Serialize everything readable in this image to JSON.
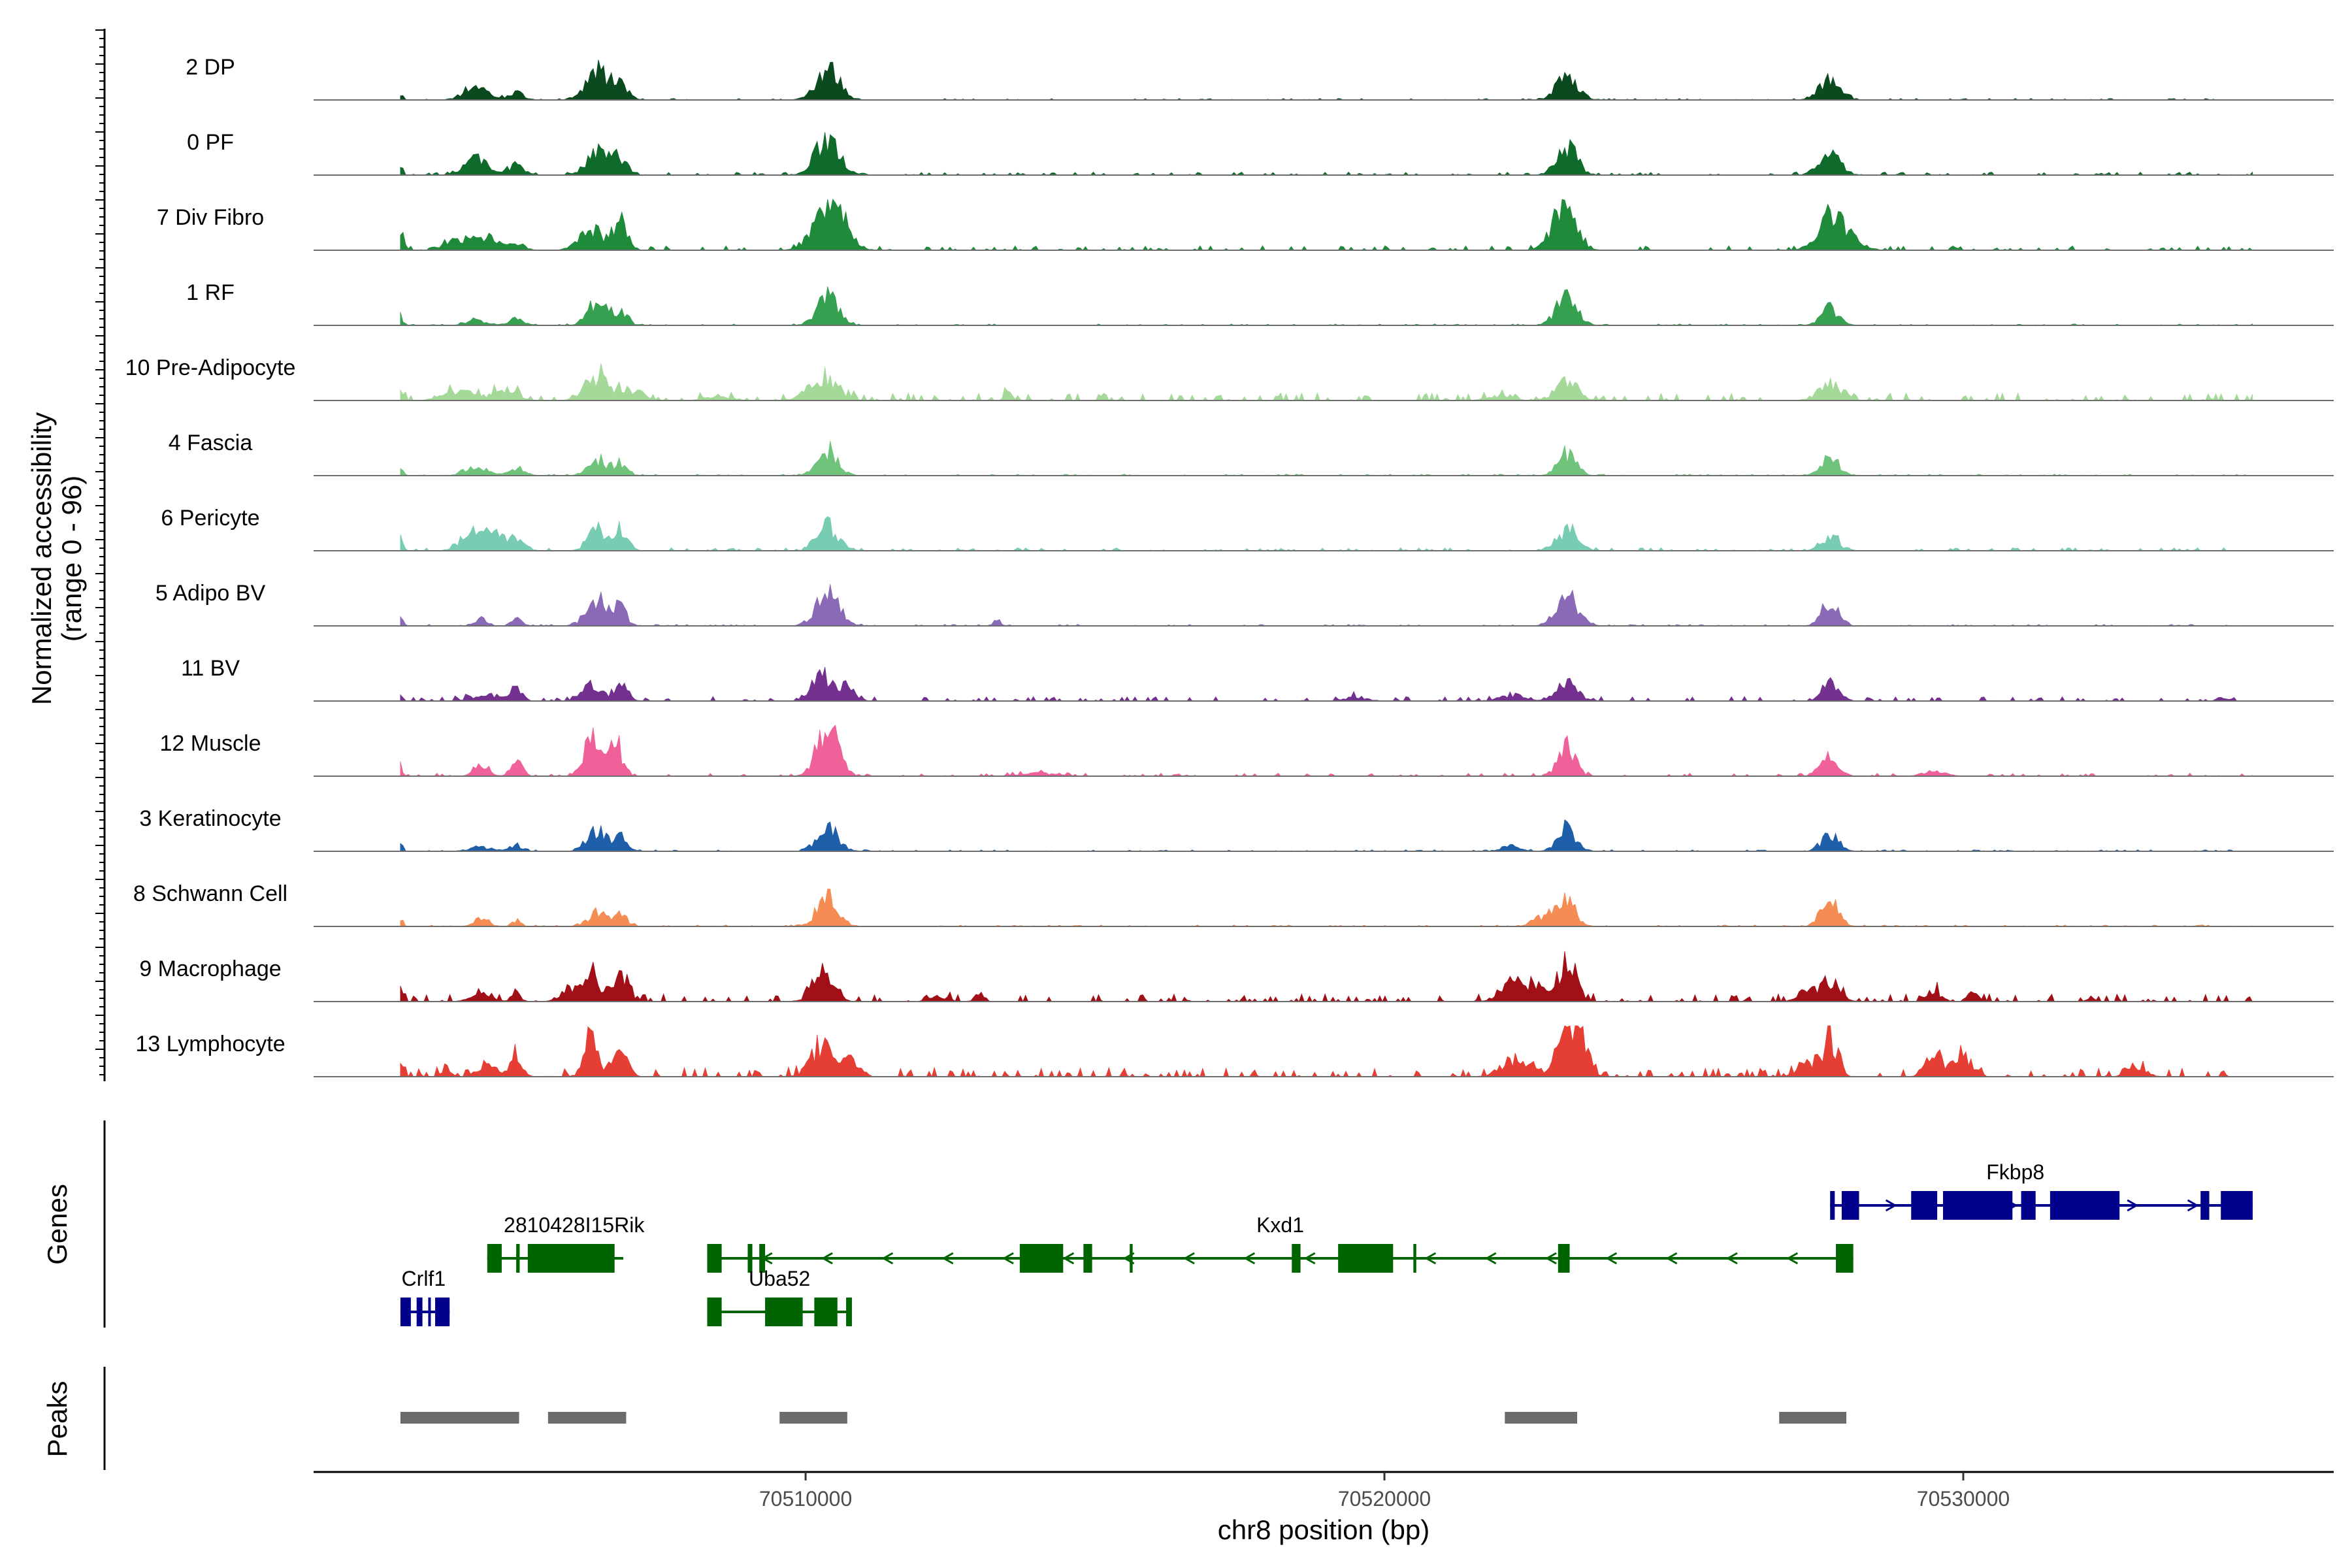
{
  "chart_data": {
    "type": "area",
    "title": "",
    "ylabel_line1": "Normalized accessibility",
    "ylabel_line2": "(range 0 - 96)",
    "xlabel": "chr8 position (bp)",
    "xlim": [
      70501500,
      70536400
    ],
    "x_ticks": [
      70510000,
      70520000,
      70530000
    ],
    "x_tick_labels": [
      "70510000",
      "70520000",
      "70530000"
    ],
    "y_range": [
      0,
      96
    ],
    "genes_track_label": "Genes",
    "peaks_track_label": "Peaks",
    "peak_centers": [
      70504000,
      70506550,
      70510380,
      70523150,
      70527720
    ],
    "series": [
      {
        "name": "2 DP",
        "color": "#0b4a1f",
        "peaks": [
          [
            70503000,
            0.15,
            40
          ],
          [
            70504300,
            0.28,
            200
          ],
          [
            70505000,
            0.14,
            140
          ],
          [
            70506400,
            0.55,
            180
          ],
          [
            70506800,
            0.38,
            120
          ],
          [
            70510380,
            0.6,
            200
          ],
          [
            70523150,
            0.45,
            180
          ],
          [
            70527700,
            0.4,
            180
          ]
        ],
        "noise": 0.01
      },
      {
        "name": "0 PF",
        "color": "#0e6b2b",
        "peaks": [
          [
            70503000,
            0.2,
            40
          ],
          [
            70504300,
            0.3,
            200
          ],
          [
            70505000,
            0.18,
            140
          ],
          [
            70506400,
            0.45,
            180
          ],
          [
            70506800,
            0.35,
            120
          ],
          [
            70510380,
            0.72,
            200
          ],
          [
            70523150,
            0.55,
            180
          ],
          [
            70527700,
            0.45,
            180
          ]
        ],
        "noise": 0.02
      },
      {
        "name": "7 Div Fibro",
        "color": "#1f8a3a",
        "peaks": [
          [
            70503000,
            0.4,
            60
          ],
          [
            70504000,
            0.2,
            200
          ],
          [
            70504500,
            0.25,
            160
          ],
          [
            70505000,
            0.15,
            140
          ],
          [
            70506300,
            0.4,
            200
          ],
          [
            70506800,
            0.55,
            120
          ],
          [
            70510300,
            0.65,
            220
          ],
          [
            70510600,
            0.45,
            200
          ],
          [
            70523100,
            0.85,
            200
          ],
          [
            70527700,
            0.62,
            220
          ],
          [
            70528100,
            0.15,
            200
          ]
        ],
        "noise": 0.03
      },
      {
        "name": "1 RF",
        "color": "#35a04f",
        "peaks": [
          [
            70503000,
            0.2,
            40
          ],
          [
            70504300,
            0.12,
            160
          ],
          [
            70505000,
            0.12,
            140
          ],
          [
            70506400,
            0.45,
            160
          ],
          [
            70506800,
            0.28,
            120
          ],
          [
            70510380,
            0.55,
            180
          ],
          [
            70523150,
            0.55,
            180
          ],
          [
            70527700,
            0.35,
            150
          ]
        ],
        "noise": 0.01
      },
      {
        "name": "10 Pre-Adipocyte",
        "color": "#a4d99a",
        "peaks": [
          [
            70503000,
            0.25,
            40
          ],
          [
            70504000,
            0.2,
            250
          ],
          [
            70504800,
            0.22,
            200
          ],
          [
            70506400,
            0.5,
            200
          ],
          [
            70507000,
            0.2,
            200
          ],
          [
            70508500,
            0.1,
            200
          ],
          [
            70510300,
            0.45,
            250
          ],
          [
            70513500,
            0.15,
            60
          ],
          [
            70522000,
            0.1,
            200
          ],
          [
            70523150,
            0.35,
            200
          ],
          [
            70527700,
            0.35,
            200
          ]
        ],
        "noise": 0.05
      },
      {
        "name": "4 Fascia",
        "color": "#6fc37a",
        "peaks": [
          [
            70503000,
            0.15,
            40
          ],
          [
            70504300,
            0.18,
            180
          ],
          [
            70505000,
            0.15,
            140
          ],
          [
            70506400,
            0.3,
            160
          ],
          [
            70506800,
            0.25,
            120
          ],
          [
            70510380,
            0.48,
            180
          ],
          [
            70523150,
            0.42,
            160
          ],
          [
            70527700,
            0.35,
            150
          ]
        ],
        "noise": 0.01
      },
      {
        "name": "6 Pericyte",
        "color": "#77ccb3",
        "peaks": [
          [
            70503000,
            0.25,
            40
          ],
          [
            70504200,
            0.32,
            180
          ],
          [
            70504600,
            0.3,
            180
          ],
          [
            70505000,
            0.22,
            140
          ],
          [
            70506400,
            0.38,
            160
          ],
          [
            70506800,
            0.4,
            120
          ],
          [
            70510380,
            0.5,
            180
          ],
          [
            70523150,
            0.4,
            180
          ],
          [
            70527700,
            0.3,
            150
          ]
        ],
        "noise": 0.02
      },
      {
        "name": "5 Adipo BV",
        "color": "#8a6ab7",
        "peaks": [
          [
            70503000,
            0.2,
            40
          ],
          [
            70504400,
            0.15,
            100
          ],
          [
            70505000,
            0.2,
            80
          ],
          [
            70506400,
            0.55,
            180
          ],
          [
            70506800,
            0.3,
            120
          ],
          [
            70510380,
            0.6,
            200
          ],
          [
            70513300,
            0.12,
            60
          ],
          [
            70523150,
            0.6,
            180
          ],
          [
            70527700,
            0.45,
            150
          ]
        ],
        "noise": 0.01
      },
      {
        "name": "11 BV",
        "color": "#74308f",
        "peaks": [
          [
            70503000,
            0.15,
            40
          ],
          [
            70504500,
            0.12,
            250
          ],
          [
            70505000,
            0.22,
            100
          ],
          [
            70506300,
            0.35,
            160
          ],
          [
            70506800,
            0.3,
            120
          ],
          [
            70510300,
            0.5,
            180
          ],
          [
            70510700,
            0.25,
            150
          ],
          [
            70519500,
            0.08,
            200
          ],
          [
            70522200,
            0.12,
            200
          ],
          [
            70523150,
            0.35,
            180
          ],
          [
            70527700,
            0.32,
            150
          ],
          [
            70534500,
            0.08,
            100
          ]
        ],
        "noise": 0.03
      },
      {
        "name": "12 Muscle",
        "color": "#f0619a",
        "peaks": [
          [
            70503000,
            0.2,
            40
          ],
          [
            70504400,
            0.25,
            120
          ],
          [
            70505000,
            0.25,
            100
          ],
          [
            70506300,
            0.75,
            120
          ],
          [
            70506700,
            0.7,
            120
          ],
          [
            70510380,
            0.95,
            180
          ],
          [
            70514000,
            0.06,
            300
          ],
          [
            70523150,
            0.55,
            150
          ],
          [
            70527700,
            0.35,
            150
          ],
          [
            70529500,
            0.08,
            200
          ]
        ],
        "noise": 0.02
      },
      {
        "name": "3 Keratinocyte",
        "color": "#1f5ea8",
        "peaks": [
          [
            70503000,
            0.15,
            40
          ],
          [
            70504400,
            0.08,
            200
          ],
          [
            70505000,
            0.1,
            120
          ],
          [
            70506400,
            0.4,
            180
          ],
          [
            70506800,
            0.25,
            120
          ],
          [
            70510380,
            0.48,
            180
          ],
          [
            70522200,
            0.1,
            150
          ],
          [
            70523150,
            0.45,
            160
          ],
          [
            70527700,
            0.3,
            150
          ]
        ],
        "noise": 0.01
      },
      {
        "name": "8 Schwann Cell",
        "color": "#f58c54",
        "peaks": [
          [
            70503000,
            0.15,
            40
          ],
          [
            70504400,
            0.18,
            120
          ],
          [
            70505000,
            0.12,
            80
          ],
          [
            70506400,
            0.25,
            160
          ],
          [
            70506800,
            0.22,
            120
          ],
          [
            70510380,
            0.55,
            180
          ],
          [
            70522800,
            0.2,
            200
          ],
          [
            70523150,
            0.45,
            160
          ],
          [
            70527700,
            0.5,
            150
          ]
        ],
        "noise": 0.01
      },
      {
        "name": "9 Macrophage",
        "color": "#a11017",
        "peaks": [
          [
            70503000,
            0.25,
            40
          ],
          [
            70504400,
            0.12,
            200
          ],
          [
            70505000,
            0.15,
            80
          ],
          [
            70506000,
            0.25,
            200
          ],
          [
            70506300,
            0.55,
            120
          ],
          [
            70506800,
            0.45,
            150
          ],
          [
            70510300,
            0.55,
            180
          ],
          [
            70512300,
            0.1,
            150
          ],
          [
            70513000,
            0.15,
            80
          ],
          [
            70522200,
            0.35,
            200
          ],
          [
            70522600,
            0.3,
            150
          ],
          [
            70523150,
            0.75,
            160
          ],
          [
            70527700,
            0.4,
            160
          ],
          [
            70527300,
            0.2,
            150
          ],
          [
            70529500,
            0.2,
            120
          ],
          [
            70530200,
            0.15,
            100
          ],
          [
            70532200,
            0.08,
            60
          ]
        ],
        "noise": 0.05
      },
      {
        "name": "13 Lymphocyte",
        "color": "#e53e35",
        "peaks": [
          [
            70503000,
            0.3,
            40
          ],
          [
            70503800,
            0.18,
            80
          ],
          [
            70504500,
            0.25,
            150
          ],
          [
            70505000,
            0.4,
            100
          ],
          [
            70506300,
            0.85,
            120
          ],
          [
            70506800,
            0.5,
            120
          ],
          [
            70510300,
            0.6,
            200
          ],
          [
            70510800,
            0.25,
            150
          ],
          [
            70522300,
            0.35,
            250
          ],
          [
            70523150,
            0.9,
            150
          ],
          [
            70523400,
            0.5,
            150
          ],
          [
            70527700,
            0.8,
            120
          ],
          [
            70527300,
            0.3,
            150
          ],
          [
            70529500,
            0.35,
            150
          ],
          [
            70530000,
            0.45,
            150
          ],
          [
            70533000,
            0.2,
            150
          ]
        ],
        "noise": 0.06
      }
    ],
    "genes": [
      {
        "name": "2810428I15Rik",
        "strand": "-",
        "color": "#006400",
        "row": 1,
        "start": 70504500,
        "end": 70506850,
        "exons": [
          [
            70504500,
            70504750
          ],
          [
            70505000,
            70505060
          ],
          [
            70505200,
            70506700
          ]
        ],
        "label_x": 70506000
      },
      {
        "name": "Crlf1",
        "strand": "+",
        "color": "#00008b",
        "row": 2,
        "start": 70503000,
        "end": 70503850,
        "exons": [
          [
            70503000,
            70503180
          ],
          [
            70503280,
            70503380
          ],
          [
            70503480,
            70503520
          ],
          [
            70503600,
            70503850
          ]
        ],
        "label_x": 70503400
      },
      {
        "name": "Kxd1",
        "strand": "-",
        "color": "#006400",
        "row": 1,
        "start": 70508300,
        "end": 70528100,
        "exons": [
          [
            70508300,
            70508550
          ],
          [
            70509000,
            70509080
          ],
          [
            70509200,
            70509300
          ],
          [
            70513700,
            70514450
          ],
          [
            70514800,
            70514950
          ],
          [
            70515600,
            70515650
          ],
          [
            70518400,
            70518550
          ],
          [
            70519200,
            70520150
          ],
          [
            70520500,
            70520550
          ],
          [
            70523000,
            70523200
          ],
          [
            70527800,
            70528100
          ]
        ],
        "label_x": 70518200
      },
      {
        "name": "Uba52",
        "strand": "+",
        "color": "#006400",
        "row": 2,
        "start": 70508300,
        "end": 70510800,
        "exons": [
          [
            70508300,
            70508550
          ],
          [
            70509300,
            70509950
          ],
          [
            70510150,
            70510550
          ],
          [
            70510700,
            70510800
          ]
        ],
        "label_x": 70509550
      },
      {
        "name": "Fkbp8",
        "strand": "+",
        "color": "#00008b",
        "row": 0,
        "start": 70527700,
        "end": 70535000,
        "exons": [
          [
            70527700,
            70527780
          ],
          [
            70527900,
            70528200
          ],
          [
            70529100,
            70529550
          ],
          [
            70529650,
            70530850
          ],
          [
            70531000,
            70531250
          ],
          [
            70531500,
            70532700
          ],
          [
            70534100,
            70534250
          ],
          [
            70534450,
            70535000
          ]
        ],
        "label_x": 70530900
      }
    ]
  }
}
